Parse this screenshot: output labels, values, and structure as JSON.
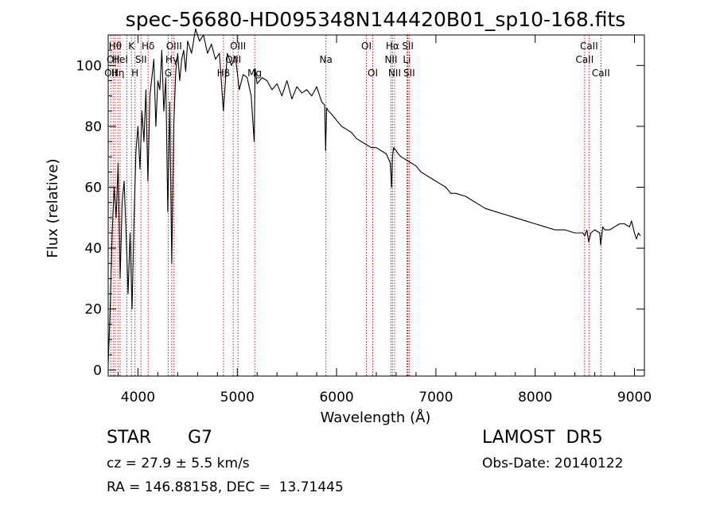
{
  "chart_data": {
    "type": "line",
    "title": "spec-56680-HD095348N144420B01_sp10-168.fits",
    "xlabel": "Wavelength (Å)",
    "ylabel": "Flux (relative)",
    "xlim": [
      3700,
      9100
    ],
    "ylim": [
      -2,
      110
    ],
    "xticks": [
      {
        "value": 4000,
        "label": "4000"
      },
      {
        "value": 5000,
        "label": "5000"
      },
      {
        "value": 6000,
        "label": "6000"
      },
      {
        "value": 7000,
        "label": "7000"
      },
      {
        "value": 8000,
        "label": "8000"
      },
      {
        "value": 9000,
        "label": "9000"
      }
    ],
    "yticks": [
      {
        "value": 0,
        "label": "0"
      },
      {
        "value": 20,
        "label": "20"
      },
      {
        "value": 40,
        "label": "40"
      },
      {
        "value": 60,
        "label": "60"
      },
      {
        "value": 80,
        "label": "80"
      },
      {
        "value": 100,
        "label": "100"
      }
    ],
    "grid": false,
    "line_color": "#000000",
    "marker_color": "#cc0000",
    "lines": [
      {
        "wavelength": 3727,
        "label": "OII",
        "row": 2
      },
      {
        "wavelength": 3750,
        "label": "OII",
        "row": 1
      },
      {
        "wavelength": 3771,
        "label": "Hθ",
        "row": 0
      },
      {
        "wavelength": 3798,
        "label": "Hη",
        "row": 2
      },
      {
        "wavelength": 3820,
        "label": "HeI",
        "row": 1
      },
      {
        "wavelength": 3889,
        "label": "",
        "row": 0
      },
      {
        "wavelength": 3934,
        "label": "K",
        "row": 0
      },
      {
        "wavelength": 3970,
        "label": "H",
        "row": 2
      },
      {
        "wavelength": 4030,
        "label": "SII",
        "row": 1
      },
      {
        "wavelength": 4102,
        "label": "Hδ",
        "row": 0
      },
      {
        "wavelength": 4304,
        "label": "G",
        "row": 2
      },
      {
        "wavelength": 4340,
        "label": "Hγ",
        "row": 1
      },
      {
        "wavelength": 4363,
        "label": "OIII",
        "row": 0
      },
      {
        "wavelength": 4861,
        "label": "Hβ",
        "row": 2
      },
      {
        "wavelength": 4959,
        "label": "OIII",
        "row": 1
      },
      {
        "wavelength": 5007,
        "label": "OIII",
        "row": 0
      },
      {
        "wavelength": 5175,
        "label": "Mg",
        "row": 2
      },
      {
        "wavelength": 5893,
        "label": "Na",
        "row": 1
      },
      {
        "wavelength": 6300,
        "label": "OI",
        "row": 0
      },
      {
        "wavelength": 6364,
        "label": "OI",
        "row": 2
      },
      {
        "wavelength": 6548,
        "label": "NII",
        "row": 1
      },
      {
        "wavelength": 6563,
        "label": "Hα",
        "row": 0
      },
      {
        "wavelength": 6584,
        "label": "NII",
        "row": 2
      },
      {
        "wavelength": 6708,
        "label": "Li",
        "row": 1
      },
      {
        "wavelength": 6717,
        "label": "SII",
        "row": 0
      },
      {
        "wavelength": 6731,
        "label": "SII",
        "row": 2
      },
      {
        "wavelength": 8498,
        "label": "CaII",
        "row": 1
      },
      {
        "wavelength": 8542,
        "label": "CaII",
        "row": 0
      },
      {
        "wavelength": 8662,
        "label": "CaII",
        "row": 2
      }
    ],
    "spectrum": {
      "x": [
        3700,
        3720,
        3740,
        3760,
        3780,
        3800,
        3820,
        3840,
        3860,
        3880,
        3900,
        3920,
        3940,
        3960,
        3980,
        4000,
        4020,
        4040,
        4060,
        4080,
        4100,
        4120,
        4140,
        4160,
        4180,
        4200,
        4220,
        4240,
        4260,
        4280,
        4300,
        4320,
        4340,
        4360,
        4380,
        4400,
        4420,
        4440,
        4460,
        4480,
        4500,
        4540,
        4580,
        4620,
        4660,
        4700,
        4740,
        4780,
        4820,
        4860,
        4900,
        4940,
        4980,
        5020,
        5060,
        5100,
        5140,
        5170,
        5180,
        5200,
        5250,
        5300,
        5350,
        5400,
        5450,
        5500,
        5550,
        5600,
        5650,
        5700,
        5750,
        5800,
        5850,
        5880,
        5890,
        5900,
        5920,
        5950,
        6000,
        6050,
        6100,
        6150,
        6200,
        6250,
        6300,
        6350,
        6400,
        6450,
        6500,
        6540,
        6555,
        6563,
        6575,
        6600,
        6620,
        6650,
        6700,
        6750,
        6800,
        6850,
        6900,
        6950,
        7000,
        7050,
        7100,
        7150,
        7200,
        7300,
        7400,
        7500,
        7600,
        7700,
        7800,
        7900,
        8000,
        8100,
        8200,
        8300,
        8400,
        8480,
        8500,
        8520,
        8540,
        8560,
        8600,
        8650,
        8660,
        8680,
        8700,
        8750,
        8800,
        8850,
        8900,
        8950,
        8970,
        9000,
        9020,
        9040,
        9060
      ],
      "flux": [
        2,
        20,
        45,
        60,
        50,
        68,
        30,
        55,
        62,
        45,
        25,
        45,
        20,
        50,
        72,
        80,
        66,
        85,
        75,
        92,
        62,
        90,
        96,
        102,
        80,
        95,
        92,
        105,
        85,
        96,
        52,
        88,
        35,
        80,
        98,
        104,
        95,
        102,
        105,
        98,
        108,
        104,
        112,
        108,
        110,
        104,
        107,
        102,
        104,
        85,
        104,
        100,
        103,
        92,
        97,
        96,
        90,
        75,
        99,
        94,
        96,
        95,
        92,
        94,
        90,
        95,
        89,
        93,
        91,
        92,
        90,
        93,
        88,
        87,
        72,
        86,
        85,
        84,
        82,
        80,
        79,
        78,
        76,
        75,
        74,
        73,
        73,
        72,
        71,
        68,
        60,
        70,
        73,
        72,
        71,
        70,
        69,
        68,
        67,
        65,
        64,
        63,
        62,
        61,
        60,
        58,
        58,
        57,
        55,
        53,
        52,
        51,
        50,
        49,
        48,
        47,
        46,
        46,
        45,
        45,
        44,
        46,
        42,
        45,
        46,
        45,
        41,
        47,
        46,
        46,
        47,
        48,
        48,
        47,
        49,
        45,
        43,
        45,
        44
      ]
    }
  },
  "info": {
    "object_class": "STAR",
    "subclass": "G7",
    "cz": "cz = 27.9 ± 5.5 km/s",
    "coords": "RA = 146.88158, DEC =  13.71445",
    "survey": "LAMOST  DR5",
    "obs_date": "Obs-Date: 20140122"
  }
}
